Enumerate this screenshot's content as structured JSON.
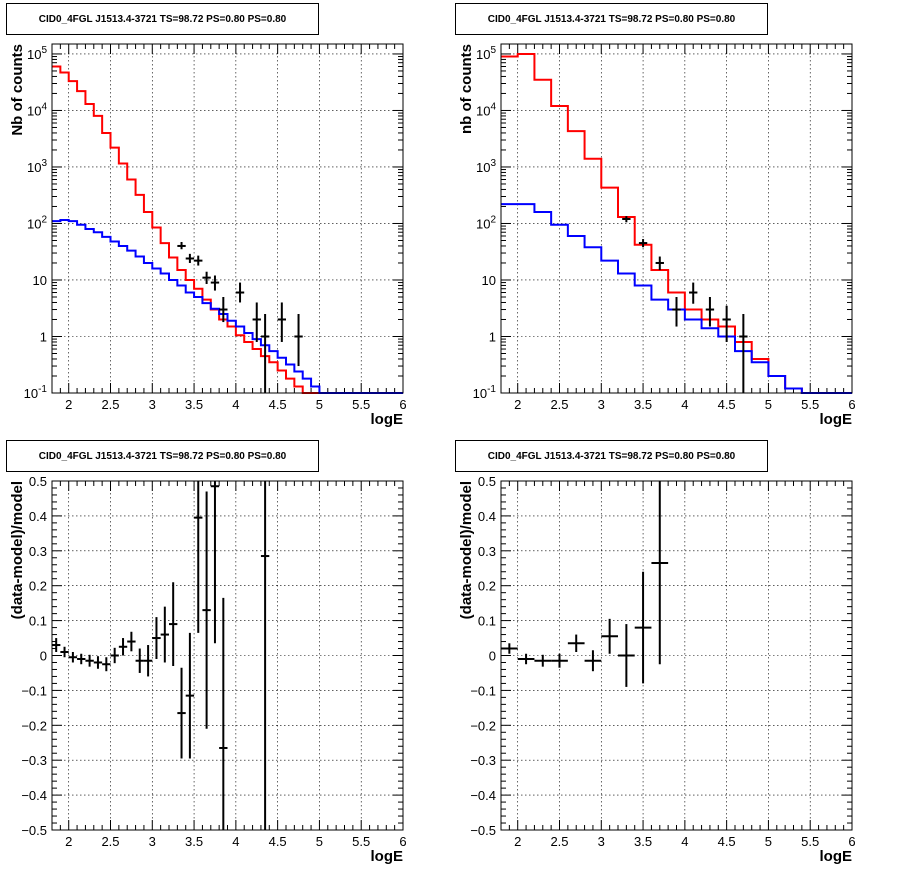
{
  "chart_data": [
    {
      "id": "p1",
      "type": "line",
      "scale": "log",
      "title": "CID0_4FGL J1513.4-3721 TS=98.72 PS=0.80 PS=0.80",
      "xlabel": "logE",
      "ylabel": "Nb of counts",
      "xlim": [
        1.8,
        6.0
      ],
      "ylim": [
        0.1,
        150000
      ],
      "grid": true,
      "xticks": [
        "2",
        "2.5",
        "3",
        "3.5",
        "4",
        "4.5",
        "5",
        "5.5",
        "6"
      ],
      "xtick_values": [
        2,
        2.5,
        3,
        3.5,
        4,
        4.5,
        5,
        5.5,
        6
      ],
      "yticks": [
        "10^-1",
        "1",
        "10",
        "10^2",
        "10^3",
        "10^4",
        "10^5"
      ],
      "ytick_values": [
        0.1,
        1,
        10,
        100,
        1000,
        10000,
        100000
      ],
      "bin_edges": [
        1.8,
        1.9,
        2.0,
        2.1,
        2.2,
        2.3,
        2.4,
        2.5,
        2.6,
        2.7,
        2.8,
        2.9,
        3.0,
        3.1,
        3.2,
        3.3,
        3.4,
        3.5,
        3.6,
        3.7,
        3.8,
        3.9,
        4.0,
        4.1,
        4.2,
        4.3,
        4.4,
        4.5,
        4.6,
        4.7,
        4.8,
        4.9,
        5.0,
        5.1,
        5.2,
        5.3,
        5.4,
        5.5,
        5.6,
        5.7,
        5.8,
        5.9,
        6.0
      ],
      "series": [
        {
          "color": "#ff0000",
          "values": [
            60000,
            47000,
            33000,
            22000,
            13000,
            8000,
            4000,
            2200,
            1150,
            600,
            320,
            160,
            85,
            45,
            25,
            15,
            10,
            7,
            4.5,
            3.0,
            2.0,
            1.5,
            1.05,
            0.8,
            0.6,
            0.45,
            0.35,
            0.25,
            0.18,
            0.13,
            0.1,
            0.1,
            0.1,
            0.1,
            0.1,
            0.1,
            0.1,
            0.1,
            0.1,
            0.1,
            0.1,
            0.1
          ]
        },
        {
          "color": "#0000ff",
          "values": [
            110,
            115,
            110,
            95,
            80,
            70,
            58,
            48,
            40,
            33,
            26,
            20,
            16,
            13,
            10,
            8,
            6,
            5,
            3.9,
            3.1,
            2.5,
            1.9,
            1.5,
            1.15,
            0.9,
            0.7,
            0.55,
            0.42,
            0.32,
            0.24,
            0.18,
            0.13,
            0.1,
            0.1,
            0.1,
            0.1,
            0.1,
            0.1,
            0.1,
            0.1,
            0.1,
            0.1
          ]
        }
      ],
      "points": [
        {
          "x": 3.35,
          "y": 40,
          "lo": 35,
          "hi": 47
        },
        {
          "x": 3.45,
          "y": 24,
          "lo": 20,
          "hi": 29
        },
        {
          "x": 3.55,
          "y": 22,
          "lo": 18,
          "hi": 27
        },
        {
          "x": 3.65,
          "y": 11,
          "lo": 8.5,
          "hi": 14
        },
        {
          "x": 3.75,
          "y": 9,
          "lo": 6.5,
          "hi": 12
        },
        {
          "x": 3.85,
          "y": 3,
          "lo": 1.8,
          "hi": 5
        },
        {
          "x": 4.05,
          "y": 6,
          "lo": 4,
          "hi": 9
        },
        {
          "x": 4.25,
          "y": 2,
          "lo": 0.8,
          "hi": 4
        },
        {
          "x": 4.35,
          "y": 1,
          "lo": 0.1,
          "hi": 2.5
        },
        {
          "x": 4.55,
          "y": 2,
          "lo": 0.8,
          "hi": 4
        },
        {
          "x": 4.75,
          "y": 1,
          "lo": 0.3,
          "hi": 2.5
        }
      ]
    },
    {
      "id": "p2",
      "type": "line",
      "scale": "log",
      "title": "CID0_4FGL J1513.4-3721 TS=98.72 PS=0.80 PS=0.80",
      "xlabel": "logE",
      "ylabel": "nb of counts",
      "xlim": [
        1.8,
        6.0
      ],
      "ylim": [
        0.1,
        150000
      ],
      "grid": true,
      "xticks": [
        "2",
        "2.5",
        "3",
        "3.5",
        "4",
        "4.5",
        "5",
        "5.5",
        "6"
      ],
      "xtick_values": [
        2,
        2.5,
        3,
        3.5,
        4,
        4.5,
        5,
        5.5,
        6
      ],
      "yticks": [
        "10^-1",
        "1",
        "10",
        "10^2",
        "10^3",
        "10^4",
        "10^5"
      ],
      "ytick_values": [
        0.1,
        1,
        10,
        100,
        1000,
        10000,
        100000
      ],
      "bin_edges": [
        1.8,
        2.0,
        2.2,
        2.4,
        2.6,
        2.8,
        3.0,
        3.2,
        3.4,
        3.6,
        3.8,
        4.0,
        4.2,
        4.4,
        4.6,
        4.8,
        5.0,
        5.2,
        5.4,
        5.6,
        5.8,
        6.0
      ],
      "series": [
        {
          "color": "#ff0000",
          "values": [
            90000,
            100000,
            35000,
            12000,
            4300,
            1400,
            430,
            130,
            42,
            15,
            6,
            3,
            2,
            1.5,
            0.8,
            0.4,
            0.2,
            0.12,
            0.1,
            0.1,
            0.1
          ]
        },
        {
          "color": "#0000ff",
          "values": [
            220,
            220,
            160,
            95,
            60,
            38,
            22,
            13,
            8,
            4.5,
            3,
            2,
            1.4,
            1,
            0.55,
            0.35,
            0.2,
            0.12,
            0.1,
            0.1,
            0.1
          ]
        }
      ],
      "points": [
        {
          "x": 3.3,
          "y": 120,
          "lo": 105,
          "hi": 135
        },
        {
          "x": 3.5,
          "y": 45,
          "lo": 38,
          "hi": 53
        },
        {
          "x": 3.7,
          "y": 20,
          "lo": 15,
          "hi": 26
        },
        {
          "x": 3.9,
          "y": 3,
          "lo": 1.5,
          "hi": 5
        },
        {
          "x": 4.1,
          "y": 6,
          "lo": 3.8,
          "hi": 9
        },
        {
          "x": 4.3,
          "y": 3,
          "lo": 1.5,
          "hi": 5
        },
        {
          "x": 4.5,
          "y": 2,
          "lo": 0.8,
          "hi": 3.5
        },
        {
          "x": 4.7,
          "y": 1,
          "lo": 0.1,
          "hi": 2.5
        }
      ]
    },
    {
      "id": "p3",
      "type": "scatter",
      "scale": "linear",
      "title": "CID0_4FGL J1513.4-3721 TS=98.72 PS=0.80 PS=0.80",
      "xlabel": "logE",
      "ylabel": "(data-model)/model",
      "xlim": [
        1.8,
        6.0
      ],
      "ylim": [
        -0.5,
        0.5
      ],
      "grid": true,
      "xticks": [
        "2",
        "2.5",
        "3",
        "3.5",
        "4",
        "4.5",
        "5",
        "5.5",
        "6"
      ],
      "xtick_values": [
        2,
        2.5,
        3,
        3.5,
        4,
        4.5,
        5,
        5.5,
        6
      ],
      "yticks": [
        "−0.5",
        "−0.4",
        "−0.3",
        "−0.2",
        "−0.1",
        "0",
        "0.1",
        "0.2",
        "0.3",
        "0.4",
        "0.5"
      ],
      "ytick_values": [
        -0.5,
        -0.4,
        -0.3,
        -0.2,
        -0.1,
        0,
        0.1,
        0.2,
        0.3,
        0.4,
        0.5
      ],
      "xerr": 0.05,
      "points": [
        {
          "x": 1.85,
          "y": 0.03,
          "err": 0.02
        },
        {
          "x": 1.95,
          "y": 0.01,
          "err": 0.015
        },
        {
          "x": 2.05,
          "y": -0.005,
          "err": 0.015
        },
        {
          "x": 2.15,
          "y": -0.01,
          "err": 0.015
        },
        {
          "x": 2.25,
          "y": -0.015,
          "err": 0.017
        },
        {
          "x": 2.35,
          "y": -0.02,
          "err": 0.018
        },
        {
          "x": 2.45,
          "y": -0.025,
          "err": 0.02
        },
        {
          "x": 2.55,
          "y": 0.0,
          "err": 0.022
        },
        {
          "x": 2.65,
          "y": 0.025,
          "err": 0.025
        },
        {
          "x": 2.75,
          "y": 0.04,
          "err": 0.028
        },
        {
          "x": 2.85,
          "y": -0.015,
          "err": 0.035
        },
        {
          "x": 2.95,
          "y": -0.015,
          "err": 0.045
        },
        {
          "x": 3.05,
          "y": 0.05,
          "err": 0.06
        },
        {
          "x": 3.15,
          "y": 0.06,
          "err": 0.08
        },
        {
          "x": 3.25,
          "y": 0.09,
          "err": 0.12
        },
        {
          "x": 3.35,
          "y": -0.165,
          "err": 0.13
        },
        {
          "x": 3.45,
          "y": -0.115,
          "err": 0.18
        },
        {
          "x": 3.55,
          "y": 0.395,
          "err": 0.33
        },
        {
          "x": 3.65,
          "y": 0.13,
          "err": 0.34
        },
        {
          "x": 3.75,
          "y": 0.485,
          "err": 0.45
        },
        {
          "x": 3.85,
          "y": -0.265,
          "err": 0.43
        },
        {
          "x": 4.35,
          "y": 0.285,
          "err": 0.9
        }
      ]
    },
    {
      "id": "p4",
      "type": "scatter",
      "scale": "linear",
      "title": "CID0_4FGL J1513.4-3721 TS=98.72 PS=0.80 PS=0.80",
      "xlabel": "logE",
      "ylabel": "(data-model)/model",
      "xlim": [
        1.8,
        6.0
      ],
      "ylim": [
        -0.5,
        0.5
      ],
      "grid": true,
      "xticks": [
        "2",
        "2.5",
        "3",
        "3.5",
        "4",
        "4.5",
        "5",
        "5.5",
        "6"
      ],
      "xtick_values": [
        2,
        2.5,
        3,
        3.5,
        4,
        4.5,
        5,
        5.5,
        6
      ],
      "yticks": [
        "−0.5",
        "−0.4",
        "−0.3",
        "−0.2",
        "−0.1",
        "0",
        "0.1",
        "0.2",
        "0.3",
        "0.4",
        "0.5"
      ],
      "ytick_values": [
        -0.5,
        -0.4,
        -0.3,
        -0.2,
        -0.1,
        0,
        0.1,
        0.2,
        0.3,
        0.4,
        0.5
      ],
      "xerr": 0.1,
      "points": [
        {
          "x": 1.9,
          "y": 0.02,
          "err": 0.015
        },
        {
          "x": 2.1,
          "y": -0.01,
          "err": 0.015
        },
        {
          "x": 2.3,
          "y": -0.015,
          "err": 0.017
        },
        {
          "x": 2.5,
          "y": -0.015,
          "err": 0.02
        },
        {
          "x": 2.7,
          "y": 0.035,
          "err": 0.025
        },
        {
          "x": 2.9,
          "y": -0.015,
          "err": 0.03
        },
        {
          "x": 3.1,
          "y": 0.055,
          "err": 0.05
        },
        {
          "x": 3.3,
          "y": 0.0,
          "err": 0.09
        },
        {
          "x": 3.5,
          "y": 0.08,
          "err": 0.16
        },
        {
          "x": 3.7,
          "y": 0.265,
          "err": 0.29
        }
      ]
    }
  ]
}
